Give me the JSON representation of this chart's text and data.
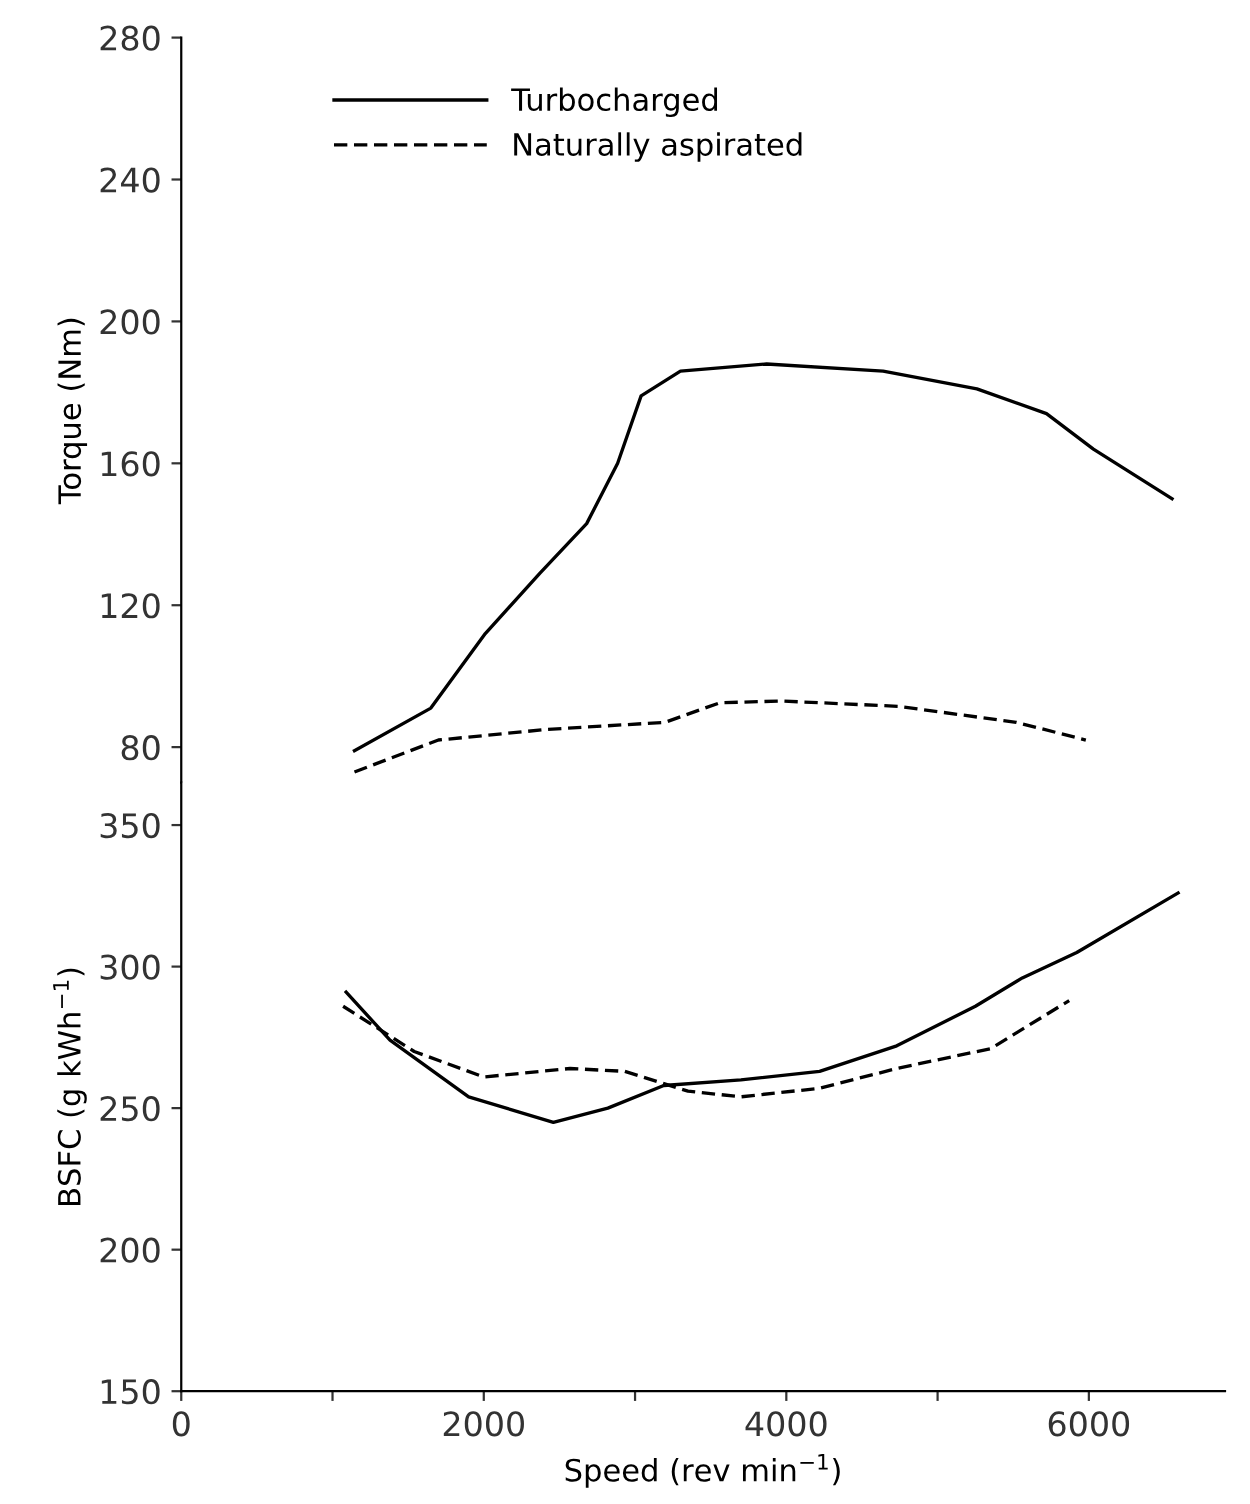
{
  "chart_data": [
    {
      "type": "line",
      "ylabel": "Torque (Nm)",
      "xlim": [
        0,
        6900
      ],
      "ylim": [
        70,
        280
      ],
      "yticks": [
        80,
        120,
        160,
        200,
        240,
        280
      ],
      "tick_labels": "y",
      "legend": "top left",
      "grid": false,
      "marker": "none",
      "series": [
        {
          "name": "Turbocharged",
          "color": "#000000",
          "line_style": "solid",
          "x": [
            1145,
            1650,
            2010,
            2370,
            2680,
            2885,
            3040,
            3300,
            3870,
            4640,
            5260,
            5720,
            6030,
            6550
          ],
          "values": [
            79,
            91,
            112,
            129,
            143,
            160,
            179,
            186,
            188,
            186,
            181,
            174,
            164,
            150
          ]
        },
        {
          "name": "Naturally aspirated",
          "color": "#000000",
          "line_style": "dashed",
          "x": [
            1145,
            1700,
            2420,
            3200,
            3560,
            3970,
            4740,
            5520,
            5980
          ],
          "values": [
            73,
            82,
            85,
            87,
            92.5,
            93,
            91.5,
            87,
            82
          ]
        }
      ]
    },
    {
      "type": "line",
      "xlabel": "Speed (rev min$^{−1}$)",
      "ylabel": "BSFC (g kWh$^{−1}$)",
      "xlim": [
        0,
        6900
      ],
      "xticks": [
        0,
        {
          "value": 1000,
          "label": null
        },
        2000,
        {
          "value": 3000,
          "label": null
        },
        4000,
        {
          "value": 5000,
          "label": null
        },
        6000
      ],
      "ylim": [
        150,
        365
      ],
      "yticks": [
        150,
        200,
        250,
        300,
        350
      ],
      "grid": false,
      "marker": "none",
      "series": [
        {
          "color": "#000000",
          "line_style": "solid",
          "x": [
            1090,
            1380,
            1900,
            2460,
            2820,
            3190,
            3700,
            4220,
            4730,
            5250,
            5560,
            5920,
            6590
          ],
          "values": [
            291,
            274,
            254,
            245,
            250,
            258,
            260,
            263,
            272,
            286,
            296,
            305,
            326
          ]
        },
        {
          "color": "#000000",
          "line_style": "dashed",
          "x": [
            1070,
            1540,
            2000,
            2570,
            2930,
            3350,
            3700,
            4220,
            4730,
            5350,
            5870
          ],
          "values": [
            286,
            270,
            261,
            264,
            263,
            256,
            254,
            257,
            264,
            271,
            288
          ]
        }
      ]
    }
  ]
}
